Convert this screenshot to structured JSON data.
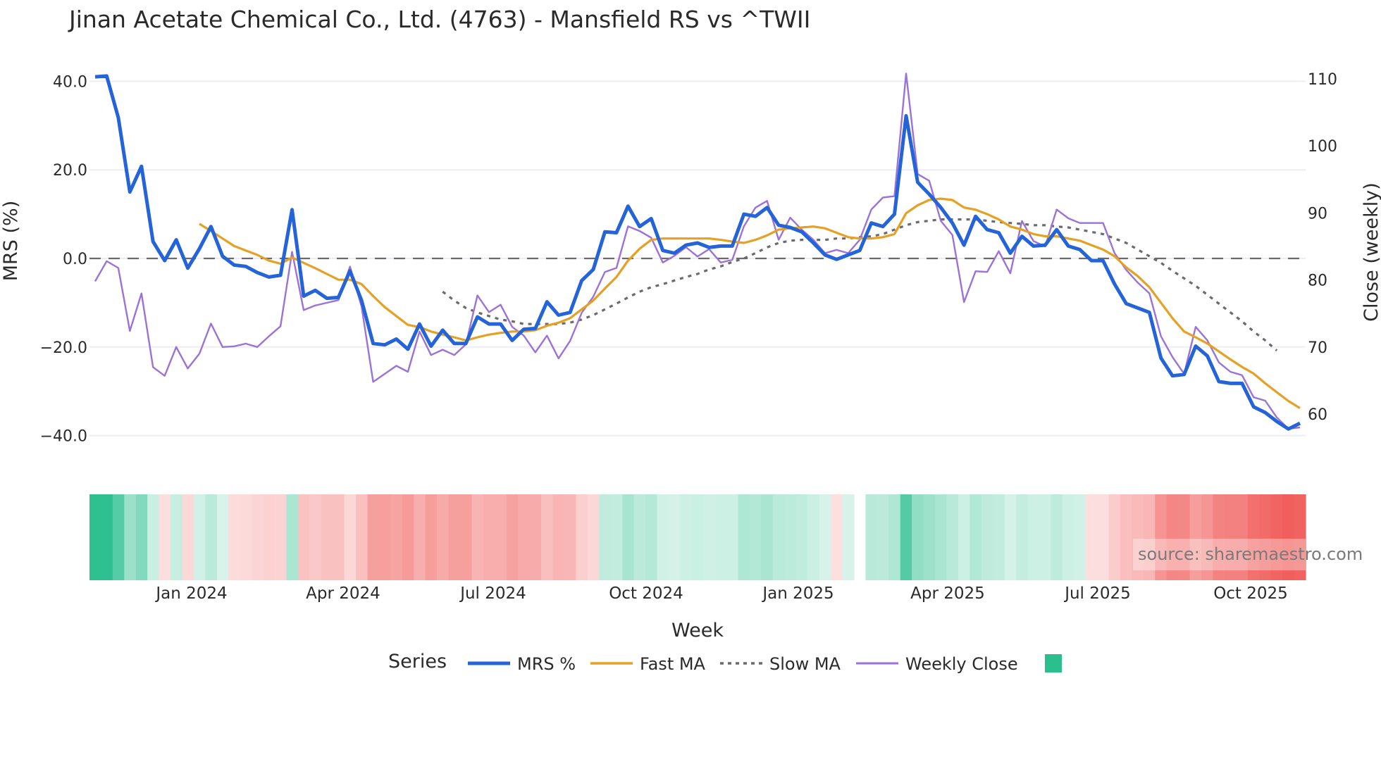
{
  "title": "Jinan Acetate Chemical Co., Ltd. (4763) - Mansfield RS vs ^TWII",
  "axes": {
    "y_left_title": "MRS (%)",
    "y_right_title": "Close (weekly)",
    "x_title": "Week",
    "y_left_ticks": [
      "40.0",
      "20.0",
      "0.0",
      "−20.0",
      "−40.0"
    ],
    "y_right_ticks": [
      "110",
      "100",
      "90",
      "80",
      "70",
      "60"
    ],
    "x_ticks": [
      "Jan 2024",
      "Apr 2024",
      "Jul 2024",
      "Oct 2024",
      "Jan 2025",
      "Apr 2025",
      "Jul 2025",
      "Oct 2025"
    ]
  },
  "legend": {
    "title": "Series",
    "items": [
      {
        "label": "MRS %",
        "color": "#2563d9",
        "style": "solid-thick"
      },
      {
        "label": "Fast MA",
        "color": "#e6a024",
        "style": "solid"
      },
      {
        "label": "Slow MA",
        "color": "#6b6b6b",
        "style": "dotted"
      },
      {
        "label": "Weekly Close",
        "color": "#9b72d9",
        "style": "solid-thin"
      },
      {
        "label": "",
        "color": "#2bbf8e",
        "style": "swatch"
      }
    ]
  },
  "source_label": "source: sharemaestro.com",
  "colors": {
    "mrs": "#2563d9",
    "fast_ma": "#e6a024",
    "slow_ma": "#6b6b6b",
    "close": "#9b72d9",
    "zero_line": "#6b6b6b",
    "grid": "#eceef3",
    "heat_pos": "#2bbf8e",
    "heat_neg": "#ef5350"
  },
  "chart_data": {
    "type": "line",
    "title": "Jinan Acetate Chemical Co., Ltd. (4763) - Mansfield RS vs ^TWII",
    "xlabel": "Week",
    "ylabel": "MRS (%)",
    "ylabel_right": "Close (weekly)",
    "ylim": [
      -45,
      44
    ],
    "ylim_right": [
      55,
      112
    ],
    "x_start": "2023-10",
    "x_end": "2025-11",
    "x_tick_labels": [
      "Jan 2024",
      "Apr 2024",
      "Jul 2024",
      "Oct 2024",
      "Jan 2025",
      "Apr 2025",
      "Jul 2025",
      "Oct 2025"
    ],
    "zero_line": 0,
    "grid": true,
    "legend_position": "bottom",
    "series": [
      {
        "name": "MRS %",
        "axis": "left",
        "values": [
          41.0,
          41.2,
          31.8,
          15.0,
          20.8,
          3.8,
          -0.5,
          4.2,
          -2.2,
          2.2,
          7.2,
          0.5,
          -1.5,
          -1.8,
          -3.2,
          -4.2,
          -3.8,
          11.0,
          -8.5,
          -7.2,
          -9.0,
          -8.8,
          -2.8,
          -9.5,
          -19.2,
          -19.5,
          -18.2,
          -20.5,
          -14.8,
          -19.8,
          -16.2,
          -19.2,
          -19.2,
          -13.2,
          -14.8,
          -14.8,
          -18.5,
          -16.0,
          -15.8,
          -9.8,
          -12.8,
          -12.2,
          -5.0,
          -2.5,
          6.0,
          5.8,
          11.8,
          7.2,
          9.0,
          1.8,
          1.2,
          3.0,
          3.5,
          2.5,
          2.8,
          2.8,
          10.0,
          9.5,
          11.5,
          7.5,
          7.0,
          6.0,
          3.5,
          0.8,
          -0.2,
          0.8,
          1.8,
          8.0,
          7.2,
          10.0,
          32.2,
          17.2,
          14.5,
          11.5,
          8.0,
          3.0,
          9.5,
          6.5,
          5.8,
          1.2,
          5.0,
          2.8,
          3.0,
          6.5,
          2.8,
          2.0,
          -0.5,
          -0.5,
          -5.8,
          -10.2,
          -11.2,
          -12.2,
          -22.5,
          -26.5,
          -26.2,
          -19.8,
          -22.0,
          -27.8,
          -28.2,
          -28.2,
          -33.5,
          -34.8,
          -36.8,
          -38.5,
          -37.2
        ]
      },
      {
        "name": "Fast MA",
        "axis": "left",
        "values": [
          null,
          null,
          null,
          null,
          null,
          null,
          null,
          null,
          null,
          7.8,
          6.2,
          4.5,
          2.8,
          1.8,
          0.8,
          -0.5,
          -1.2,
          0.2,
          -1.0,
          -2.2,
          -3.5,
          -4.8,
          -4.8,
          -5.8,
          -8.5,
          -11.0,
          -13.0,
          -15.0,
          -15.5,
          -16.5,
          -17.2,
          -17.8,
          -18.5,
          -17.8,
          -17.2,
          -16.8,
          -16.5,
          -16.5,
          -16.2,
          -15.2,
          -14.5,
          -13.5,
          -11.5,
          -9.5,
          -6.8,
          -4.2,
          -0.5,
          2.2,
          4.2,
          4.5,
          4.5,
          4.5,
          4.5,
          4.5,
          4.2,
          3.8,
          3.5,
          4.2,
          5.2,
          6.5,
          6.8,
          7.0,
          7.2,
          6.8,
          5.8,
          4.8,
          4.5,
          4.5,
          4.8,
          5.5,
          10.2,
          12.0,
          13.2,
          13.5,
          13.2,
          11.5,
          11.0,
          10.0,
          8.8,
          7.2,
          6.5,
          5.5,
          5.0,
          5.0,
          4.5,
          4.0,
          3.0,
          2.0,
          0.5,
          -2.0,
          -4.0,
          -6.5,
          -10.0,
          -13.5,
          -16.5,
          -17.8,
          -19.2,
          -21.0,
          -22.8,
          -24.5,
          -26.0,
          -28.2,
          -30.2,
          -32.2,
          -33.8
        ]
      },
      {
        "name": "Slow MA",
        "axis": "left",
        "values": [
          null,
          null,
          null,
          null,
          null,
          null,
          null,
          null,
          null,
          null,
          null,
          null,
          null,
          null,
          null,
          null,
          null,
          null,
          null,
          null,
          null,
          null,
          null,
          null,
          null,
          null,
          null,
          null,
          null,
          null,
          -7.5,
          -9.5,
          -11.2,
          -12.2,
          -13.0,
          -13.8,
          -14.2,
          -14.8,
          -14.8,
          -14.8,
          -14.8,
          -14.5,
          -13.8,
          -12.8,
          -11.5,
          -10.2,
          -8.8,
          -7.5,
          -6.5,
          -5.8,
          -5.0,
          -4.2,
          -3.5,
          -2.5,
          -1.8,
          -0.8,
          0.0,
          1.2,
          2.5,
          3.5,
          4.0,
          4.2,
          4.2,
          4.2,
          4.5,
          4.5,
          4.8,
          5.0,
          5.5,
          6.5,
          7.5,
          8.2,
          8.5,
          8.8,
          8.8,
          8.8,
          8.8,
          8.5,
          8.2,
          8.0,
          7.8,
          7.5,
          7.5,
          7.2,
          7.0,
          6.5,
          6.0,
          5.5,
          4.5,
          3.5,
          2.0,
          0.5,
          -1.0,
          -2.8,
          -4.5,
          -6.2,
          -8.2,
          -10.2,
          -12.2,
          -14.2,
          -16.5,
          -18.5,
          -20.8
        ]
      },
      {
        "name": "Weekly Close",
        "axis": "right",
        "values": [
          79.8,
          82.8,
          81.8,
          72.4,
          78.0,
          67.0,
          65.7,
          70.0,
          66.8,
          69.0,
          73.5,
          70.0,
          70.1,
          70.5,
          70.0,
          71.6,
          73.1,
          84.2,
          75.5,
          76.2,
          76.6,
          77.0,
          82.0,
          76.0,
          64.8,
          66.0,
          67.2,
          66.3,
          72.3,
          68.8,
          69.6,
          68.8,
          70.4,
          77.7,
          75.2,
          76.3,
          73.0,
          71.7,
          69.2,
          71.7,
          68.3,
          70.9,
          75.1,
          77.5,
          81.2,
          81.8,
          88.0,
          87.3,
          86.3,
          82.6,
          83.6,
          84.9,
          83.5,
          84.6,
          82.6,
          83.0,
          88.0,
          90.8,
          91.8,
          86.0,
          89.3,
          87.5,
          86.0,
          84.0,
          84.5,
          84.0,
          86.0,
          90.5,
          92.3,
          92.5,
          110.8,
          95.8,
          94.8,
          88.8,
          86.7,
          76.7,
          81.3,
          81.2,
          84.3,
          81.0,
          88.8,
          85.8,
          85.0,
          90.5,
          89.2,
          88.5,
          88.5,
          88.5,
          84.0,
          81.5,
          79.6,
          78.0,
          71.6,
          68.5,
          66.0,
          73.0,
          71.0,
          67.7,
          66.3,
          65.8,
          62.5,
          62.0,
          59.5,
          57.8,
          58.0
        ]
      }
    ],
    "heatmap_strip": {
      "description": "Weekly MRS color band: green = positive RS, red = negative RS; gap near late Jan 2025",
      "segments": [
        {
          "from": "start",
          "to": "Dec 2023",
          "sign": "positive",
          "intensity": "strong"
        },
        {
          "from": "Dec 2023",
          "to": "Feb 2024",
          "sign": "positive",
          "intensity": "light"
        },
        {
          "from": "Feb 2024",
          "to": "Mar 2024",
          "sign": "negative",
          "intensity": "light"
        },
        {
          "from": "Mar 2024",
          "to": "Sep 2024",
          "sign": "negative",
          "intensity": "medium"
        },
        {
          "from": "Sep 2024",
          "to": "Jan 2025",
          "sign": "positive",
          "intensity": "light"
        },
        {
          "from": "Feb 2025",
          "to": "Jul 2025",
          "sign": "positive",
          "intensity": "medium"
        },
        {
          "from": "Jul 2025",
          "to": "end",
          "sign": "negative",
          "intensity": "strong"
        }
      ]
    }
  }
}
